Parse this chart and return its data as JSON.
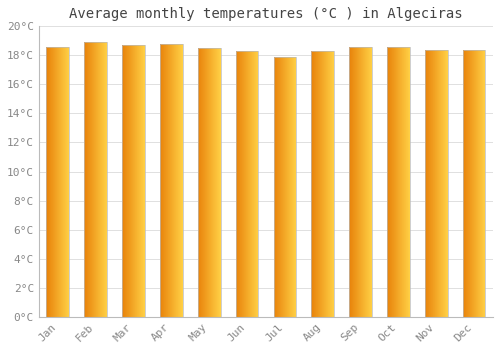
{
  "title": "Average monthly temperatures (°C ) in Algeciras",
  "months": [
    "Jan",
    "Feb",
    "Mar",
    "Apr",
    "May",
    "Jun",
    "Jul",
    "Aug",
    "Sep",
    "Oct",
    "Nov",
    "Dec"
  ],
  "values": [
    18.6,
    18.9,
    18.7,
    18.8,
    18.5,
    18.3,
    17.9,
    18.3,
    18.6,
    18.6,
    18.4,
    18.4
  ],
  "bar_color_left": "#E8820A",
  "bar_color_right": "#FFD045",
  "bar_edge_color": "#BBBBBB",
  "ylim": [
    0,
    20
  ],
  "yticks": [
    0,
    2,
    4,
    6,
    8,
    10,
    12,
    14,
    16,
    18,
    20
  ],
  "ytick_labels": [
    "0°C",
    "2°C",
    "4°C",
    "6°C",
    "8°C",
    "10°C",
    "12°C",
    "14°C",
    "16°C",
    "18°C",
    "20°C"
  ],
  "background_color": "#FFFFFF",
  "plot_bg_color": "#FFFFFF",
  "grid_color": "#E0E0E0",
  "title_fontsize": 10,
  "tick_fontsize": 8,
  "tick_color": "#888888",
  "title_color": "#444444",
  "bar_width": 0.6,
  "figsize": [
    5.0,
    3.5
  ],
  "dpi": 100
}
